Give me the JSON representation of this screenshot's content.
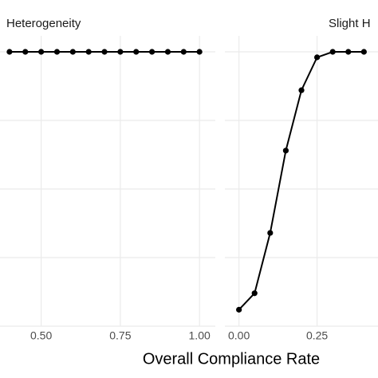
{
  "chart_data": [
    {
      "type": "line",
      "title": "Heterogeneity",
      "x": [
        0.4,
        0.45,
        0.5,
        0.55,
        0.6,
        0.65,
        0.7,
        0.75,
        0.8,
        0.85,
        0.9,
        0.95,
        1.0
      ],
      "series": [
        {
          "color": "#000000",
          "values": [
            1,
            1,
            1,
            1,
            1,
            1,
            1,
            1,
            1,
            1,
            1,
            1,
            1
          ]
        }
      ],
      "xlim": [
        0.37,
        1.05
      ],
      "xticks": [
        {
          "value": 0.5,
          "label": "0.50"
        },
        {
          "value": 0.75,
          "label": "0.75"
        },
        {
          "value": 1.0,
          "label": "1.00"
        }
      ],
      "ylim": [
        0,
        1
      ],
      "yticks": [
        0,
        0.25,
        0.5,
        0.75,
        1
      ],
      "grid": true
    },
    {
      "type": "line",
      "title": "Slight H",
      "x": [
        0.0,
        0.05,
        0.1,
        0.15,
        0.2,
        0.25,
        0.3,
        0.35,
        0.4
      ],
      "series": [
        {
          "color": "#000000",
          "values": [
            0.06,
            0.12,
            0.34,
            0.64,
            0.86,
            0.98,
            1,
            1,
            1
          ]
        }
      ],
      "xlim": [
        -0.045,
        0.445
      ],
      "xticks": [
        {
          "value": 0,
          "label": "0.00"
        },
        {
          "value": 0.25,
          "label": "0.25"
        }
      ],
      "ylim": [
        0,
        1
      ],
      "yticks": [
        0,
        0.25,
        0.5,
        0.75,
        1
      ],
      "grid": true
    }
  ],
  "xlabel": "Overall Compliance Rate"
}
